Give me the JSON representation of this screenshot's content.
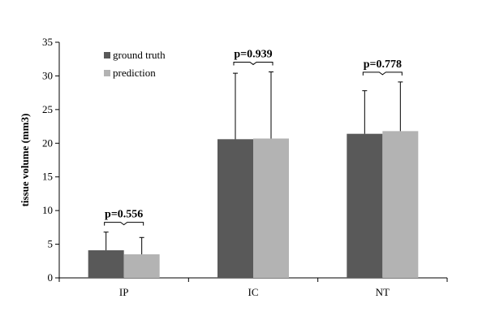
{
  "chart_data": {
    "type": "bar",
    "categories": [
      "IP",
      "IC",
      "NT"
    ],
    "series": [
      {
        "name": "ground truth",
        "color": "#595959",
        "values": [
          4.1,
          20.6,
          21.4
        ],
        "error": [
          2.7,
          9.8,
          6.4
        ]
      },
      {
        "name": "prediction",
        "color": "#b3b3b3",
        "values": [
          3.5,
          20.7,
          21.8
        ],
        "error": [
          2.5,
          9.9,
          7.3
        ]
      }
    ],
    "annotations": [
      "p=0.556",
      "p=0.939",
      "p=0.778"
    ],
    "title": "",
    "xlabel": "",
    "ylabel": "tissue volume (mm3)",
    "ylim": [
      0,
      35
    ],
    "yticks": [
      "0",
      "5",
      "10",
      "15",
      "20",
      "25",
      "30",
      "35"
    ],
    "grid": false,
    "legend_position": "top-left"
  }
}
